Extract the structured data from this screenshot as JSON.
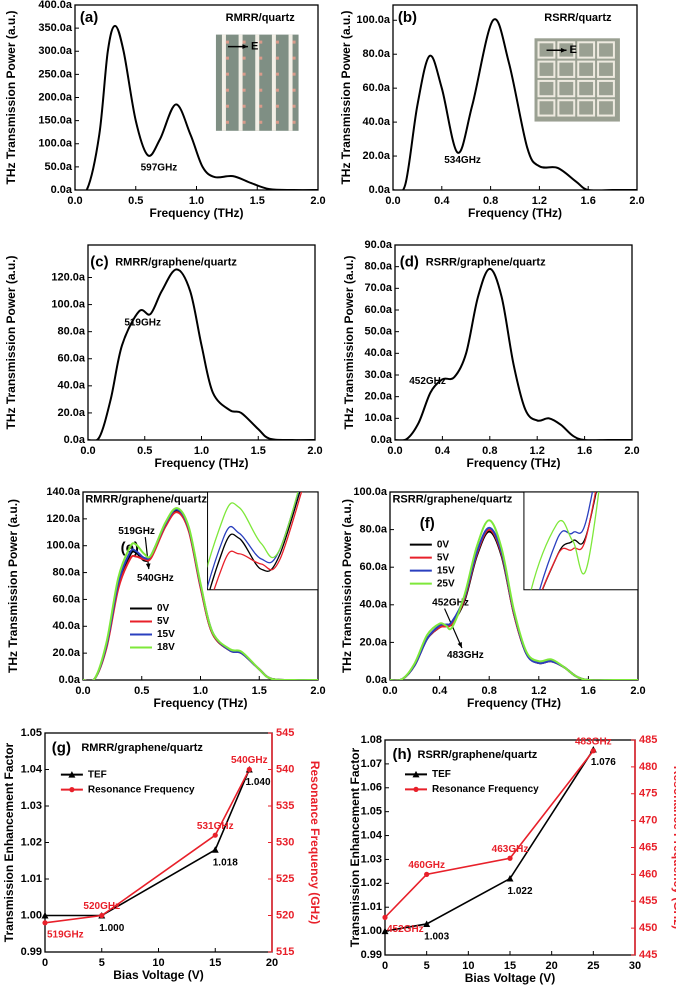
{
  "chart_data": [
    {
      "type": "line",
      "panel_label": "(a)",
      "title": "RMRR/quartz",
      "xlabel": "Frequency (THz)",
      "ylabel": "THz Transmission Power (a.u.)",
      "annotations": [
        "597GHz"
      ],
      "inset_label": "E",
      "smooth": true,
      "x": [
        0,
        0.1,
        0.2,
        0.27,
        0.33,
        0.4,
        0.5,
        0.6,
        0.7,
        0.83,
        0.95,
        1.05,
        1.15,
        1.3,
        1.45,
        1.6,
        1.8,
        2.0
      ],
      "values": [
        0,
        2,
        120,
        300,
        355,
        300,
        150,
        75,
        110,
        185,
        120,
        50,
        28,
        30,
        15,
        2,
        0,
        0
      ],
      "color": "#000000",
      "xlim": [
        0,
        2
      ],
      "xticks": [
        {
          "value": 0,
          "label": "0.0"
        },
        0.5,
        {
          "value": 1,
          "label": "1.0"
        },
        1.5,
        {
          "value": 2,
          "label": "2.0"
        }
      ],
      "ylim": [
        0,
        400
      ],
      "yticks": [
        {
          "value": 0,
          "label": "0.0a"
        },
        {
          "value": 50,
          "label": "50.0a"
        },
        {
          "value": 100,
          "label": "100.0a"
        },
        {
          "value": 150,
          "label": "150.0a"
        },
        {
          "value": 200,
          "label": "200.0a"
        },
        {
          "value": 250,
          "label": "250.0a"
        },
        {
          "value": 300,
          "label": "300.0a"
        },
        {
          "value": 350,
          "label": "350.0a"
        },
        {
          "value": 400,
          "label": "400.0a"
        }
      ]
    },
    {
      "type": "line",
      "panel_label": "(b)",
      "title": "RSRR/quartz",
      "xlabel": "Frequency (THz)",
      "ylabel": "THz Transmission Power (a.u.)",
      "annotations": [
        "534GHz"
      ],
      "inset_label": "E",
      "smooth": true,
      "x": [
        0,
        0.1,
        0.2,
        0.3,
        0.4,
        0.53,
        0.65,
        0.82,
        0.95,
        1.1,
        1.2,
        1.35,
        1.5,
        1.6,
        1.8,
        2.0
      ],
      "values": [
        0,
        3,
        50,
        79,
        60,
        22,
        50,
        100,
        75,
        25,
        14,
        13,
        5,
        0,
        0,
        0
      ],
      "color": "#000000",
      "xlim": [
        0,
        2
      ],
      "xticks": [
        {
          "value": 0,
          "label": "0.0"
        },
        0.4,
        0.8,
        1.2,
        1.6,
        {
          "value": 2,
          "label": "2.0"
        }
      ],
      "ylim": [
        0,
        109
      ],
      "yticks": [
        {
          "value": 0,
          "label": "0.0a"
        },
        {
          "value": 20,
          "label": "20.0a"
        },
        {
          "value": 40,
          "label": "40.0a"
        },
        {
          "value": 60,
          "label": "60.0a"
        },
        {
          "value": 80,
          "label": "80.0a"
        },
        {
          "value": 100,
          "label": "100.0a"
        }
      ]
    },
    {
      "type": "line",
      "panel_label": "(c)",
      "title": "RMRR/graphene/quartz",
      "xlabel": "Frequency (THz)",
      "ylabel": "THz Transmission Power (a.u.)",
      "annotations": [
        "519GHz"
      ],
      "smooth": true,
      "x": [
        0,
        0.1,
        0.2,
        0.3,
        0.45,
        0.55,
        0.65,
        0.78,
        0.9,
        1.0,
        1.1,
        1.25,
        1.35,
        1.5,
        1.6,
        1.8,
        2.0
      ],
      "values": [
        0,
        2,
        30,
        70,
        95,
        93,
        110,
        126,
        110,
        70,
        35,
        22,
        20,
        8,
        1,
        0,
        0
      ],
      "color": "#000000",
      "xlim": [
        0,
        2
      ],
      "xticks": [
        {
          "value": 0,
          "label": "0.0"
        },
        0.5,
        {
          "value": 1,
          "label": "1.0"
        },
        1.5,
        {
          "value": 2,
          "label": "2.0"
        }
      ],
      "ylim": [
        0,
        144
      ],
      "yticks": [
        {
          "value": 0,
          "label": "0.0a"
        },
        {
          "value": 20,
          "label": "20.0a"
        },
        {
          "value": 40,
          "label": "40.0a"
        },
        {
          "value": 60,
          "label": "60.0a"
        },
        {
          "value": 80,
          "label": "80.0a"
        },
        {
          "value": 100,
          "label": "100.0a"
        },
        {
          "value": 120,
          "label": "120.0a"
        }
      ]
    },
    {
      "type": "line",
      "panel_label": "(d)",
      "title": "RSRR/graphene/quartz",
      "xlabel": "Frequency (THz)",
      "ylabel": "THz Transmission Power (a.u.)",
      "annotations": [
        "452GHz"
      ],
      "smooth": true,
      "x": [
        0,
        0.1,
        0.2,
        0.3,
        0.4,
        0.5,
        0.6,
        0.7,
        0.8,
        0.9,
        1.0,
        1.1,
        1.2,
        1.3,
        1.4,
        1.5,
        1.6,
        1.8,
        2.0
      ],
      "values": [
        0,
        0.5,
        8,
        22,
        28,
        29,
        40,
        66,
        79,
        66,
        35,
        14,
        9,
        10,
        7,
        2,
        0,
        0,
        0
      ],
      "color": "#000000",
      "xlim": [
        0,
        2
      ],
      "xticks": [
        {
          "value": 0,
          "label": "0.0"
        },
        0.4,
        0.8,
        1.2,
        1.6,
        {
          "value": 2,
          "label": "2.0"
        }
      ],
      "ylim": [
        0,
        90
      ],
      "yticks": [
        {
          "value": 0,
          "label": "0.0a"
        },
        {
          "value": 10,
          "label": "10.0a"
        },
        {
          "value": 20,
          "label": "20.0a"
        },
        {
          "value": 30,
          "label": "30.0a"
        },
        {
          "value": 40,
          "label": "40.0a"
        },
        {
          "value": 50,
          "label": "50.0a"
        },
        {
          "value": 60,
          "label": "60.0a"
        },
        {
          "value": 70,
          "label": "70.0a"
        },
        {
          "value": 80,
          "label": "80.0a"
        },
        {
          "value": 90,
          "label": "90.0a"
        }
      ]
    },
    {
      "type": "line",
      "panel_label": "(e)",
      "title": "RMRR/graphene/quartz",
      "xlabel": "Frequency (THz)",
      "ylabel": "THz Transmission Power (a.u.)",
      "annotations": [
        "519GHz",
        "540GHz"
      ],
      "smooth": true,
      "inset": {
        "xlim": [
          0.35,
          0.7
        ],
        "ylim": [
          85,
          104
        ]
      },
      "x": [
        0,
        0.1,
        0.2,
        0.3,
        0.4,
        0.45,
        0.52,
        0.58,
        0.7,
        0.8,
        0.9,
        1.0,
        1.1,
        1.25,
        1.35,
        1.5,
        1.6,
        1.8,
        2.0
      ],
      "series": [
        {
          "name": "0V",
          "color": "#000000",
          "values": [
            0,
            1,
            25,
            70,
            93,
            95,
            89,
            92,
            115,
            126,
            112,
            70,
            35,
            22,
            20,
            8,
            1,
            0,
            0
          ]
        },
        {
          "name": "5V",
          "color": "#e8202a",
          "values": [
            0,
            1,
            24,
            68,
            90,
            92,
            90,
            91,
            114,
            125,
            111,
            69,
            35,
            22,
            20,
            8,
            1,
            0,
            0
          ]
        },
        {
          "name": "15V",
          "color": "#2a3fbf",
          "values": [
            0,
            1,
            26,
            72,
            95,
            96,
            91,
            93,
            116,
            127,
            113,
            71,
            36,
            22,
            20,
            8,
            1,
            0,
            0
          ]
        },
        {
          "name": "18V",
          "color": "#7ee83a",
          "values": [
            0,
            1,
            28,
            76,
            99,
            101,
            94,
            93,
            117,
            128,
            114,
            72,
            36,
            23,
            21,
            8,
            1,
            0,
            0
          ]
        }
      ],
      "xlim": [
        0,
        2
      ],
      "xticks": [
        {
          "value": 0,
          "label": "0.0"
        },
        0.5,
        {
          "value": 1,
          "label": "1.0"
        },
        1.5,
        {
          "value": 2,
          "label": "2.0"
        }
      ],
      "ylim": [
        0,
        140
      ],
      "yticks": [
        {
          "value": 0,
          "label": "0.0a"
        },
        {
          "value": 20,
          "label": "20.0a"
        },
        {
          "value": 40,
          "label": "40.0a"
        },
        {
          "value": 60,
          "label": "60.0a"
        },
        {
          "value": 80,
          "label": "80.0a"
        },
        {
          "value": 100,
          "label": "100.0a"
        },
        {
          "value": 120,
          "label": "120.0a"
        },
        {
          "value": 140,
          "label": "140.0a"
        }
      ]
    },
    {
      "type": "line",
      "panel_label": "(f)",
      "title": "RSRR/graphene/quartz",
      "xlabel": "Frequency (THz)",
      "ylabel": "THz Transmission Power (a.u.)",
      "annotations": [
        "452GHz",
        "483GHz"
      ],
      "smooth": true,
      "inset": {
        "xlim": [
          0.3,
          0.65
        ],
        "ylim": [
          26,
          32
        ]
      },
      "x": [
        0,
        0.1,
        0.2,
        0.3,
        0.4,
        0.45,
        0.5,
        0.6,
        0.7,
        0.8,
        0.9,
        1.0,
        1.1,
        1.2,
        1.3,
        1.4,
        1.5,
        1.6,
        1.8,
        2.0
      ],
      "series": [
        {
          "name": "0V",
          "color": "#000000",
          "values": [
            0,
            0.5,
            8,
            22,
            28,
            29,
            30,
            42,
            66,
            79,
            66,
            35,
            14,
            9,
            10,
            7,
            2,
            0,
            0,
            0
          ]
        },
        {
          "name": "5V",
          "color": "#e8202a",
          "values": [
            0,
            0.5,
            8,
            22,
            28,
            28.5,
            30,
            43,
            67,
            80,
            67,
            35,
            14,
            9,
            10,
            7,
            2,
            0,
            0,
            0
          ]
        },
        {
          "name": "15V",
          "color": "#2a3fbf",
          "values": [
            0,
            0.5,
            8,
            22,
            29,
            29.5,
            31,
            44,
            68,
            81,
            68,
            36,
            14,
            9,
            10,
            7,
            2,
            0,
            0,
            0
          ]
        },
        {
          "name": "25V",
          "color": "#7ee83a",
          "values": [
            0,
            0.5,
            9,
            24,
            30,
            29,
            28,
            45,
            71,
            85,
            70,
            37,
            15,
            10,
            11,
            7,
            2,
            0,
            0,
            0
          ]
        }
      ],
      "xlim": [
        0,
        2
      ],
      "xticks": [
        {
          "value": 0,
          "label": "0.0"
        },
        0.4,
        0.8,
        1.2,
        1.6,
        {
          "value": 2,
          "label": "2.0"
        }
      ],
      "ylim": [
        0,
        100
      ],
      "yticks": [
        {
          "value": 0,
          "label": "0.0a"
        },
        {
          "value": 20,
          "label": "20.0a"
        },
        {
          "value": 40,
          "label": "40.0a"
        },
        {
          "value": 60,
          "label": "60.0a"
        },
        {
          "value": 80,
          "label": "80.0a"
        },
        {
          "value": 100,
          "label": "100.0a"
        }
      ]
    },
    {
      "type": "line",
      "panel_label": "(g)",
      "title": "RMRR/graphene/quartz",
      "xlabel": "Bias Voltage (V)",
      "ylabel": "Transmission Enhancement Factor",
      "y2label": "Resonance Frequency (GHz)",
      "smooth": false,
      "x": [
        0,
        5,
        15,
        18
      ],
      "series": [
        {
          "name": "TEF",
          "color": "#000000",
          "marker": "triangle",
          "values": [
            1.0,
            1.0,
            1.018,
            1.04
          ],
          "value_labels": [
            null,
            "1.000",
            "1.018",
            "1.040"
          ]
        },
        {
          "name": "Resonance Frequency",
          "color": "#e8202a",
          "marker": "circle",
          "axis": "y2",
          "values": [
            519,
            520,
            531,
            540
          ],
          "value_labels": [
            "519GHz",
            "520GHz",
            "531GHz",
            "540GHz"
          ]
        }
      ],
      "xlim": [
        0,
        20
      ],
      "xticks": [
        0,
        5,
        10,
        15,
        20
      ],
      "ylim": [
        0.99,
        1.05
      ],
      "yticks": [
        0.99,
        {
          "value": 1,
          "label": "1.00"
        },
        1.01,
        1.02,
        1.03,
        1.04,
        1.05
      ],
      "y2lim": [
        515,
        545
      ],
      "y2ticks": [
        515,
        520,
        525,
        530,
        535,
        540,
        545
      ]
    },
    {
      "type": "line",
      "panel_label": "(h)",
      "title": "RSRR/graphene/quartz",
      "xlabel": "Bias Voltage (V)",
      "ylabel": "Transmission Enhancement Factor",
      "y2label": "Resonance Frequency (GHz)",
      "smooth": false,
      "x": [
        0,
        5,
        15,
        25
      ],
      "series": [
        {
          "name": "TEF",
          "color": "#000000",
          "marker": "triangle",
          "values": [
            1.0,
            1.003,
            1.022,
            1.076
          ],
          "value_labels": [
            null,
            "1.003",
            "1.022",
            "1.076"
          ]
        },
        {
          "name": "Resonance Frequency",
          "color": "#e8202a",
          "marker": "circle",
          "axis": "y2",
          "values": [
            452,
            460,
            463,
            483
          ],
          "value_labels": [
            "452GHz",
            "460GHz",
            "463GHz",
            "483GHz"
          ]
        }
      ],
      "xlim": [
        0,
        30
      ],
      "xticks": [
        0,
        5,
        10,
        15,
        20,
        25,
        30
      ],
      "ylim": [
        0.99,
        1.08
      ],
      "yticks": [
        0.99,
        {
          "value": 1,
          "label": "1.00"
        },
        1.01,
        1.02,
        1.03,
        1.04,
        1.05,
        1.06,
        1.07,
        1.08
      ],
      "y2lim": [
        445,
        485
      ],
      "y2ticks": [
        445,
        450,
        455,
        460,
        465,
        470,
        475,
        480,
        485
      ]
    }
  ]
}
